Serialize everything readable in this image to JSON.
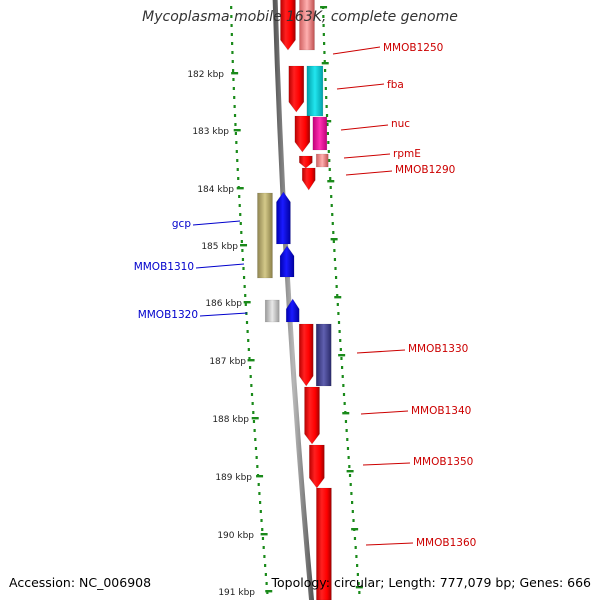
{
  "title": "Mycoplasma mobile 163K, complete genome",
  "footer": {
    "accession": "Accession: NC_006908",
    "summary": "Topology: circular; Length: 777,079 bp; Genes: 666"
  },
  "colors": {
    "scale_dots": "#1a8a1a",
    "backbone": "#8c8c8c",
    "plus_strand_label": "#cc0000",
    "minus_strand_label": "#0000cc"
  },
  "ruler_ticks": [
    {
      "label": "182 kbp"
    },
    {
      "label": "183 kbp"
    },
    {
      "label": "184 kbp"
    },
    {
      "label": "185 kbp"
    },
    {
      "label": "186 kbp"
    },
    {
      "label": "187 kbp"
    },
    {
      "label": "188 kbp"
    },
    {
      "label": "189 kbp"
    },
    {
      "label": "190 kbp"
    },
    {
      "label": "191 kbp"
    }
  ],
  "gene_labels": [
    {
      "name": "MMOB1250",
      "color": "#cc0000"
    },
    {
      "name": "fba",
      "color": "#cc0000"
    },
    {
      "name": "nuc",
      "color": "#cc0000"
    },
    {
      "name": "rpmE",
      "color": "#cc0000"
    },
    {
      "name": "MMOB1290",
      "color": "#cc0000"
    },
    {
      "name": "gcp",
      "color": "#0000cc"
    },
    {
      "name": "MMOB1310",
      "color": "#0000cc"
    },
    {
      "name": "MMOB1320",
      "color": "#0000cc"
    },
    {
      "name": "MMOB1330",
      "color": "#cc0000"
    },
    {
      "name": "MMOB1340",
      "color": "#cc0000"
    },
    {
      "name": "MMOB1350",
      "color": "#cc0000"
    },
    {
      "name": "MMOB1360",
      "color": "#cc0000"
    }
  ]
}
